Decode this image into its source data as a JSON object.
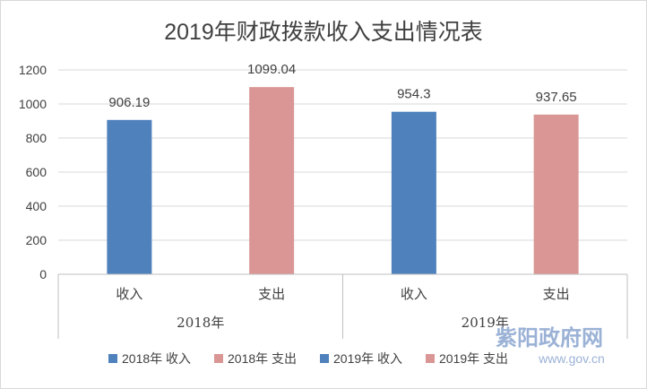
{
  "chart_data": {
    "type": "bar",
    "title": "2019年财政拨款收入支出情况表",
    "groups": [
      {
        "label": "2018年",
        "categories": [
          "收入",
          "支出"
        ]
      },
      {
        "label": "2019年",
        "categories": [
          "收入",
          "支出"
        ]
      }
    ],
    "series": [
      {
        "name": "2018年 收入",
        "color": "#4f81bd",
        "values": [
          906.19,
          null
        ]
      },
      {
        "name": "2018年 支出",
        "color": "#d99694",
        "values": [
          null,
          1099.04
        ]
      },
      {
        "name": "2019年 收入",
        "color": "#4f81bd",
        "values": [
          954.3,
          null
        ]
      },
      {
        "name": "2019年 支出",
        "color": "#d99694",
        "values": [
          null,
          937.65
        ]
      }
    ],
    "bars": [
      {
        "group": "2018年",
        "category": "收入",
        "value": 906.19,
        "label": "906.19",
        "color": "#4f81bd"
      },
      {
        "group": "2018年",
        "category": "支出",
        "value": 1099.04,
        "label": "1099.04",
        "color": "#d99694"
      },
      {
        "group": "2019年",
        "category": "收入",
        "value": 954.3,
        "label": "954.3",
        "color": "#4f81bd"
      },
      {
        "group": "2019年",
        "category": "支出",
        "value": 937.65,
        "label": "937.65",
        "color": "#d99694"
      }
    ],
    "y_ticks": [
      "0",
      "200",
      "400",
      "600",
      "800",
      "1000",
      "1200"
    ],
    "ylim": [
      0,
      1200
    ],
    "grid": true,
    "legend_position": "bottom"
  },
  "watermark": {
    "main": "紫阳政府网",
    "sub": "www.gov.cn"
  }
}
